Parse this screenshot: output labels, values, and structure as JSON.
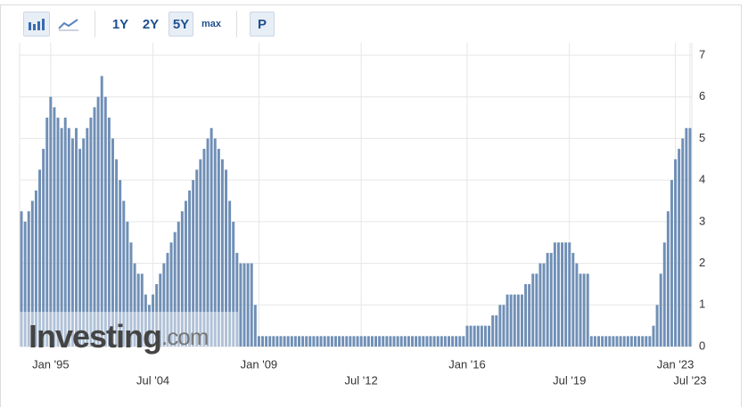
{
  "toolbar": {
    "ranges": [
      "1Y",
      "2Y",
      "5Y",
      "max"
    ],
    "print": "P"
  },
  "watermark": {
    "name": "Investing",
    "suffix": ".com"
  },
  "chart_data": {
    "type": "bar",
    "color": "#6f8fb6",
    "categories": [
      null,
      null,
      null,
      null,
      null,
      null,
      null,
      null,
      "Jan '95",
      null,
      null,
      null,
      null,
      null,
      null,
      null,
      null,
      null,
      null,
      null,
      null,
      null,
      null,
      null,
      null,
      null,
      null,
      null,
      null,
      null,
      null,
      null,
      null,
      null,
      null,
      null,
      "Jul '04",
      null,
      null,
      null,
      null,
      null,
      null,
      null,
      null,
      null,
      null,
      null,
      null,
      null,
      null,
      null,
      null,
      null,
      null,
      null,
      null,
      null,
      null,
      null,
      null,
      null,
      null,
      null,
      null,
      "Jan '09",
      null,
      null,
      null,
      null,
      null,
      null,
      null,
      null,
      null,
      null,
      null,
      null,
      null,
      null,
      null,
      null,
      null,
      null,
      null,
      null,
      null,
      null,
      null,
      null,
      null,
      null,
      null,
      "Jul '12",
      null,
      null,
      null,
      null,
      null,
      null,
      null,
      null,
      null,
      null,
      null,
      null,
      null,
      null,
      null,
      null,
      null,
      null,
      null,
      null,
      null,
      null,
      null,
      null,
      null,
      null,
      null,
      null,
      "Jan '16",
      null,
      null,
      null,
      null,
      null,
      null,
      null,
      null,
      null,
      null,
      null,
      null,
      null,
      null,
      null,
      null,
      null,
      null,
      null,
      null,
      null,
      null,
      null,
      null,
      null,
      null,
      null,
      "Jul '19",
      null,
      null,
      null,
      null,
      null,
      null,
      null,
      null,
      null,
      null,
      null,
      null,
      null,
      null,
      null,
      null,
      null,
      null,
      null,
      null,
      null,
      null,
      null,
      null,
      null,
      null,
      null,
      null,
      "Jan '23",
      null,
      null,
      null,
      "Jul '23"
    ],
    "values": [
      3.25,
      3,
      3.25,
      3.5,
      3.75,
      4.25,
      4.75,
      5.5,
      6,
      5.75,
      5.5,
      5.25,
      5.5,
      5.25,
      5,
      5.25,
      4.75,
      5,
      5.25,
      5.5,
      5.75,
      6,
      6.5,
      6,
      5.5,
      5,
      4.5,
      4,
      3.5,
      3,
      2.5,
      2,
      1.75,
      1.75,
      1.25,
      1,
      1.25,
      1.5,
      1.75,
      2,
      2.25,
      2.5,
      2.75,
      3,
      3.25,
      3.5,
      3.75,
      4,
      4.25,
      4.5,
      4.75,
      5,
      5.25,
      5,
      4.75,
      4.5,
      4.25,
      3.5,
      3,
      2.25,
      2,
      2,
      2,
      2,
      1,
      0.25,
      0.25,
      0.25,
      0.25,
      0.25,
      0.25,
      0.25,
      0.25,
      0.25,
      0.25,
      0.25,
      0.25,
      0.25,
      0.25,
      0.25,
      0.25,
      0.25,
      0.25,
      0.25,
      0.25,
      0.25,
      0.25,
      0.25,
      0.25,
      0.25,
      0.25,
      0.25,
      0.25,
      0.25,
      0.25,
      0.25,
      0.25,
      0.25,
      0.25,
      0.25,
      0.25,
      0.25,
      0.25,
      0.25,
      0.25,
      0.25,
      0.25,
      0.25,
      0.25,
      0.25,
      0.25,
      0.25,
      0.25,
      0.25,
      0.25,
      0.25,
      0.25,
      0.25,
      0.25,
      0.25,
      0.25,
      0.25,
      0.5,
      0.5,
      0.5,
      0.5,
      0.5,
      0.5,
      0.5,
      0.75,
      0.75,
      1,
      1,
      1.25,
      1.25,
      1.25,
      1.25,
      1.25,
      1.5,
      1.5,
      1.75,
      1.75,
      2,
      2,
      2.25,
      2.25,
      2.5,
      2.5,
      2.5,
      2.5,
      2.5,
      2.25,
      2,
      1.75,
      1.75,
      1.75,
      0.25,
      0.25,
      0.25,
      0.25,
      0.25,
      0.25,
      0.25,
      0.25,
      0.25,
      0.25,
      0.25,
      0.25,
      0.25,
      0.25,
      0.25,
      0.25,
      0.25,
      0.5,
      1,
      1.75,
      2.5,
      3.25,
      4,
      4.5,
      4.75,
      5,
      5.25,
      5.25
    ],
    "ylim": [
      0,
      7
    ],
    "yticks": [
      0,
      1,
      2,
      3,
      4,
      5,
      6,
      7
    ],
    "grid": true
  }
}
